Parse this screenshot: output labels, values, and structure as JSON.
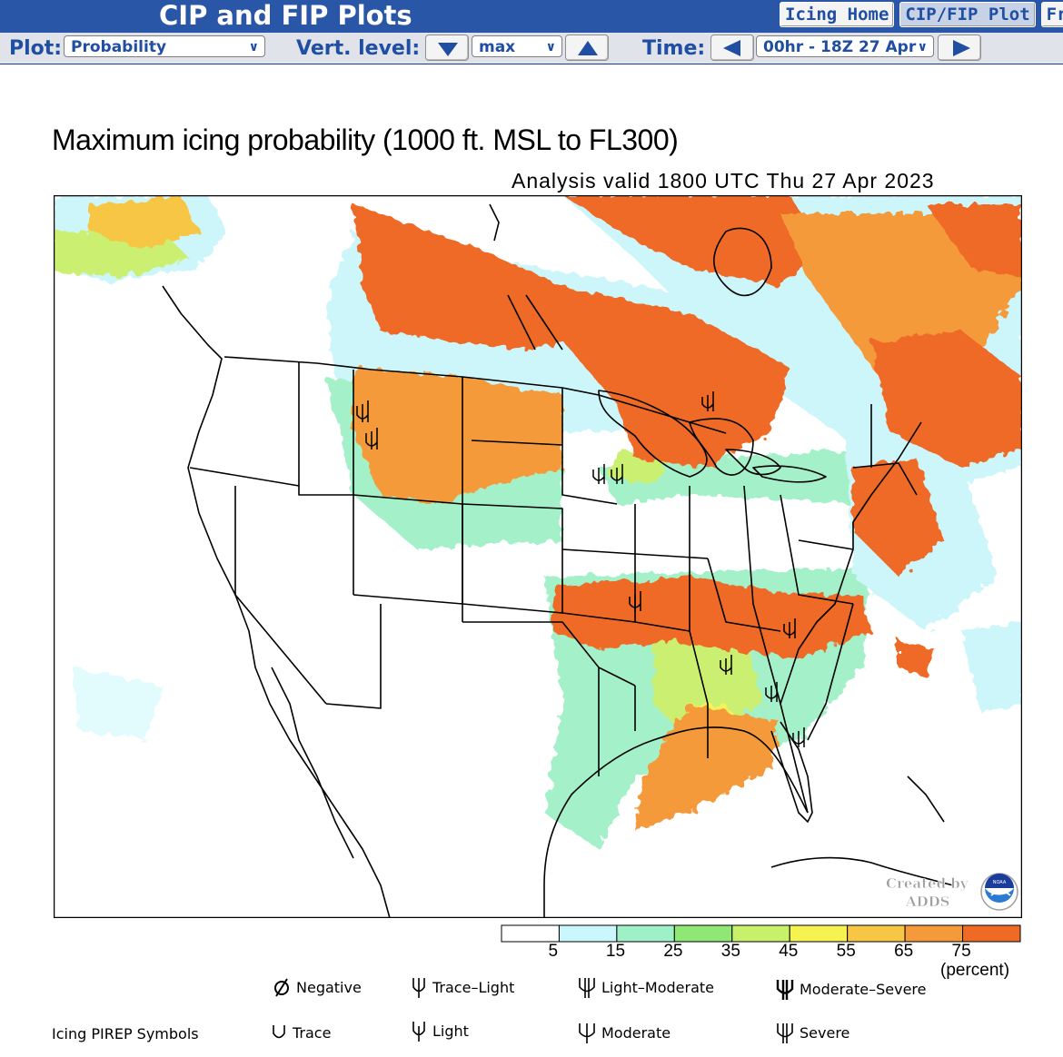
{
  "header": {
    "title": "CIP and FIP Plots",
    "nav": [
      {
        "label": "Icing Home",
        "active": false
      },
      {
        "label": "CIP/FIP Plot",
        "active": true
      },
      {
        "label": "Fr",
        "active": false
      }
    ]
  },
  "toolbar": {
    "plot_label": "Plot:",
    "plot_value": "Probability",
    "level_label": "Vert. level:",
    "level_value": "max",
    "time_label": "Time:",
    "time_value": "00hr - 18Z 27 Apr"
  },
  "plot": {
    "title": "Maximum icing probability (1000 ft. MSL to FL300)",
    "valid": "Analysis valid 1800 UTC Thu 27 Apr 2023",
    "credit_top": "Created by",
    "credit_bottom": "ADDS",
    "noaa_label": "NOAA"
  },
  "legend": {
    "bins": [
      {
        "color": "#ffffff"
      },
      {
        "color": "#cbf6fb"
      },
      {
        "color": "#9ff0c7"
      },
      {
        "color": "#8fe874"
      },
      {
        "color": "#c9f06a"
      },
      {
        "color": "#f6f24f"
      },
      {
        "color": "#f7c645"
      },
      {
        "color": "#f49a3a"
      },
      {
        "color": "#ef6a25"
      }
    ],
    "ticks": [
      "5",
      "15",
      "25",
      "35",
      "45",
      "55",
      "65",
      "75"
    ],
    "unit": "(percent)"
  },
  "pirep": {
    "heading": "Icing PIREP Symbols",
    "items": [
      {
        "symbol": "negative",
        "label": "Negative"
      },
      {
        "symbol": "trace-light",
        "label": "Trace–Light"
      },
      {
        "symbol": "light-moderate",
        "label": "Light–Moderate"
      },
      {
        "symbol": "moderate-severe",
        "label": "Moderate–Severe"
      },
      {
        "symbol": "trace",
        "label": "Trace"
      },
      {
        "symbol": "light",
        "label": "Light"
      },
      {
        "symbol": "moderate",
        "label": "Moderate"
      },
      {
        "symbol": "severe",
        "label": "Severe"
      }
    ]
  }
}
